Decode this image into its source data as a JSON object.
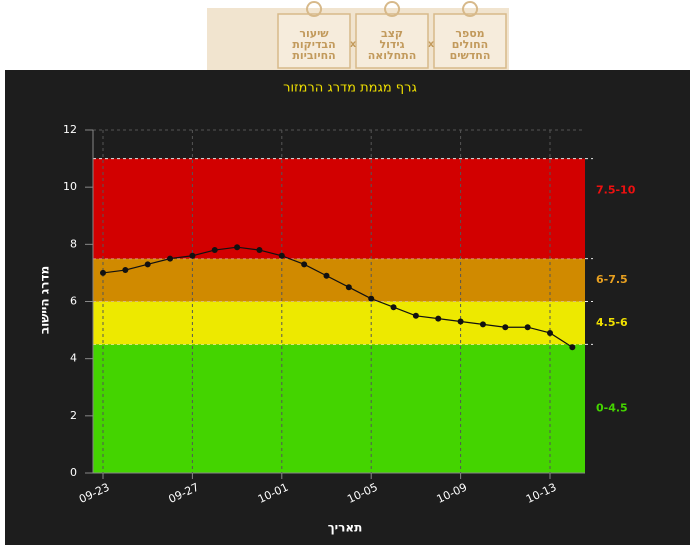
{
  "banner": {
    "items": [
      {
        "lines": [
          "מספר",
          "החולים",
          "החדשים"
        ]
      },
      {
        "lines": [
          "קצב",
          "גידול",
          "התחלואה"
        ]
      },
      {
        "lines": [
          "שיעור",
          "הבדיקות",
          "החיוביות"
        ]
      }
    ],
    "separator": "x"
  },
  "chart_data": {
    "type": "line",
    "title": "גרף מגמת מדרג הרמזור",
    "x_label": "תאריך",
    "y_label": "מדרג היישוב",
    "categories": [
      "09-23",
      null,
      null,
      null,
      "09-27",
      null,
      null,
      null,
      "10-01",
      null,
      null,
      null,
      "10-05",
      null,
      null,
      null,
      "10-09",
      null,
      null,
      null,
      "10-13",
      null
    ],
    "values": [
      7.0,
      7.1,
      7.3,
      7.5,
      7.6,
      7.8,
      7.9,
      7.8,
      7.6,
      7.3,
      6.9,
      6.5,
      6.1,
      5.8,
      5.5,
      5.4,
      5.3,
      5.2,
      5.1,
      5.1,
      4.9,
      4.4
    ],
    "color": "#111111",
    "ylim": [
      0,
      12
    ],
    "yticks": [
      0,
      2,
      4,
      6,
      8,
      10,
      12
    ],
    "grid": true,
    "bands": [
      {
        "label": "0-4.5",
        "from": 0,
        "to": 4.5,
        "color": "#44d400",
        "label_color": "#44d400"
      },
      {
        "label": "4.5-6",
        "from": 4.5,
        "to": 6,
        "color": "#ede900",
        "label_color": "#f0e000"
      },
      {
        "label": "6-7.5",
        "from": 6,
        "to": 7.5,
        "color": "#d08a00",
        "label_color": "#e8a020"
      },
      {
        "label": "7.5-10",
        "from": 7.5,
        "to": 11,
        "color": "#d20000",
        "label_color": "#ee1010"
      }
    ]
  }
}
